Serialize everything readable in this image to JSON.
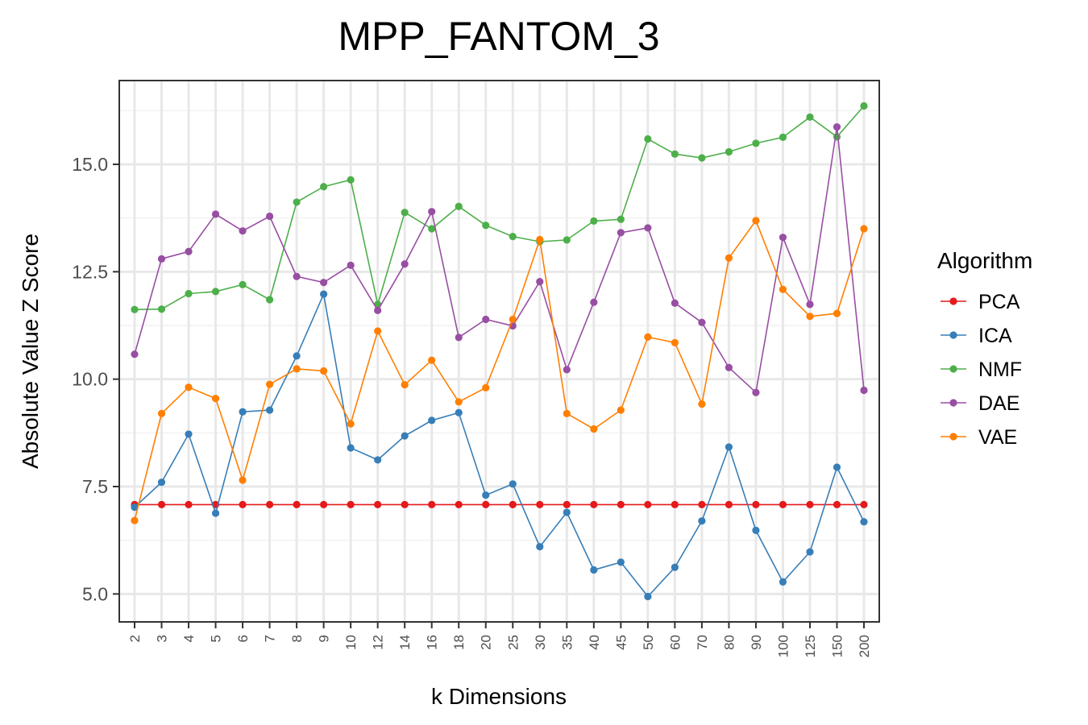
{
  "chart_data": {
    "type": "line",
    "title": "MPP_FANTOM_3",
    "xlabel": "k Dimensions",
    "ylabel": "Absolute Value Z Score",
    "categories": [
      "2",
      "3",
      "4",
      "5",
      "6",
      "7",
      "8",
      "9",
      "10",
      "12",
      "14",
      "16",
      "18",
      "20",
      "25",
      "30",
      "35",
      "40",
      "45",
      "50",
      "60",
      "70",
      "80",
      "90",
      "100",
      "125",
      "150",
      "200"
    ],
    "ylim": [
      4.35,
      16.95
    ],
    "yticks": [
      5.0,
      7.5,
      10.0,
      12.5,
      15.0
    ],
    "ytick_labels": [
      "5.0",
      "7.5",
      "10.0",
      "12.5",
      "15.0"
    ],
    "grid": true,
    "legend": {
      "title": "Algorithm",
      "position": "right"
    },
    "series": [
      {
        "name": "PCA",
        "color": "#e41a1c",
        "values": [
          7.08,
          7.08,
          7.08,
          7.08,
          7.08,
          7.08,
          7.08,
          7.08,
          7.08,
          7.08,
          7.08,
          7.08,
          7.08,
          7.08,
          7.08,
          7.08,
          7.08,
          7.08,
          7.08,
          7.08,
          7.08,
          7.08,
          7.08,
          7.08,
          7.08,
          7.08,
          7.08,
          7.08
        ]
      },
      {
        "name": "ICA",
        "color": "#377eb8",
        "values": [
          7.02,
          7.6,
          8.72,
          6.88,
          9.24,
          9.28,
          10.54,
          11.98,
          8.4,
          8.12,
          8.68,
          9.04,
          9.22,
          7.3,
          7.56,
          6.1,
          6.9,
          5.56,
          5.74,
          4.94,
          5.62,
          6.7,
          8.42,
          6.48,
          5.28,
          5.98,
          7.95,
          6.68
        ]
      },
      {
        "name": "NMF",
        "color": "#4daf4a",
        "values": [
          11.62,
          11.63,
          11.99,
          12.04,
          12.2,
          11.85,
          14.12,
          14.48,
          14.64,
          11.74,
          13.88,
          13.5,
          14.02,
          13.58,
          13.32,
          13.2,
          13.24,
          13.68,
          13.72,
          15.59,
          15.24,
          15.15,
          15.29,
          15.49,
          15.63,
          16.1,
          15.64,
          16.36
        ]
      },
      {
        "name": "DAE",
        "color": "#984ea3",
        "values": [
          10.58,
          12.8,
          12.97,
          13.84,
          13.45,
          13.79,
          12.39,
          12.25,
          12.65,
          11.6,
          12.68,
          13.9,
          10.97,
          11.39,
          11.24,
          12.27,
          10.22,
          11.79,
          13.41,
          13.52,
          11.77,
          11.32,
          10.27,
          9.69,
          13.3,
          11.74,
          15.87,
          9.74
        ]
      },
      {
        "name": "VAE",
        "color": "#ff7f00",
        "values": [
          6.71,
          9.2,
          9.81,
          9.55,
          7.65,
          9.88,
          10.24,
          10.19,
          8.96,
          11.12,
          9.87,
          10.44,
          9.47,
          9.8,
          11.39,
          13.25,
          9.2,
          8.84,
          9.28,
          10.98,
          10.85,
          9.42,
          12.82,
          13.69,
          12.09,
          11.46,
          11.53,
          13.5
        ]
      }
    ]
  }
}
